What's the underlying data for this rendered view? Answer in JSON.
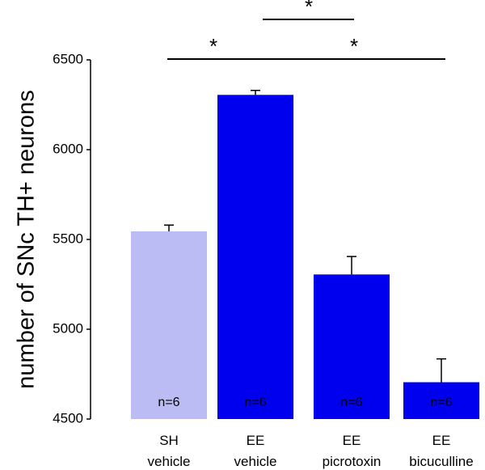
{
  "chart_data": {
    "type": "bar",
    "title": "",
    "xlabel": "",
    "ylabel": "number of SNc TH+ neurons",
    "ylim": [
      4500,
      6500
    ],
    "yticks": [
      4500,
      5000,
      5500,
      6000,
      6500
    ],
    "categories": [
      {
        "line1": "SH",
        "line2": "vehicle"
      },
      {
        "line1": "EE",
        "line2": "vehicle"
      },
      {
        "line1": "EE",
        "line2": "picrotoxin"
      },
      {
        "line1": "EE",
        "line2": "bicuculline"
      }
    ],
    "values": [
      5545,
      6305,
      5305,
      4705
    ],
    "errors": [
      35,
      25,
      100,
      130
    ],
    "n_labels": [
      "n=6",
      "n=6",
      "n=6",
      "n=6"
    ],
    "colors": [
      "#bcbcf5",
      "#0000ee",
      "#0000ee",
      "#0000ee"
    ],
    "significance": [
      {
        "from": 0,
        "to": 1,
        "label": "*"
      },
      {
        "from": 1,
        "to": 3,
        "label": "*"
      },
      {
        "from": 1,
        "to": 2,
        "label": "*"
      }
    ]
  }
}
